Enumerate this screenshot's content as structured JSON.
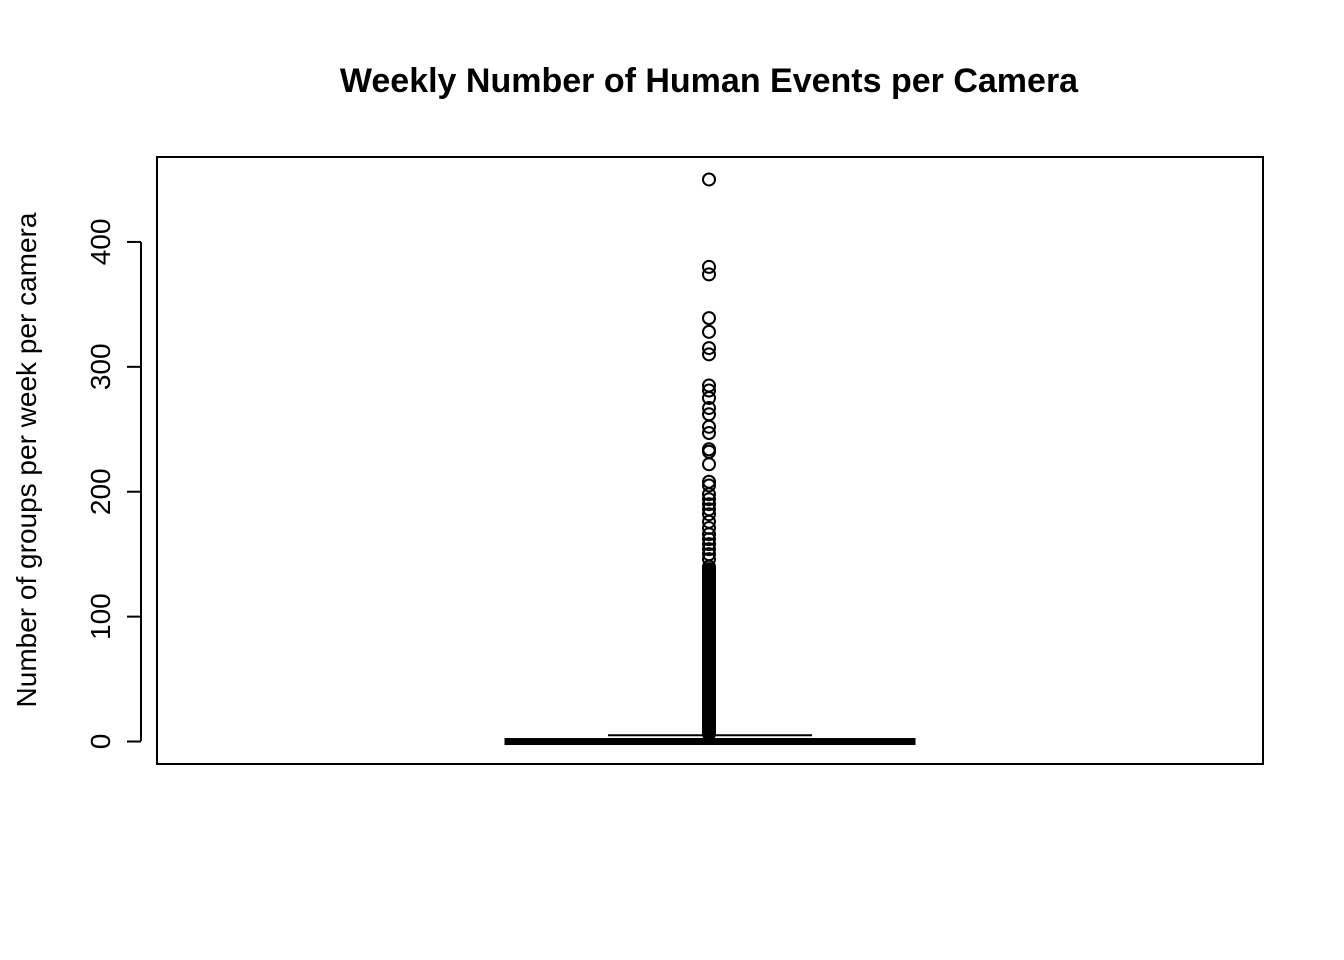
{
  "chart_data": {
    "type": "boxplot",
    "title": "Weekly Number of Human Events per Camera",
    "xlabel": "",
    "ylabel": "Number of groups per week per camera",
    "ylim": [
      -18,
      468
    ],
    "yticks": [
      0,
      100,
      200,
      300,
      400
    ],
    "grid": false,
    "legend": "none",
    "box": {
      "min": 0,
      "q1": 0,
      "median": 0,
      "q3": 0,
      "whisker_high": 5
    },
    "outliers": [
      450,
      380,
      374,
      339,
      328,
      315,
      310,
      285,
      281,
      275,
      267,
      262,
      252,
      247,
      234,
      232,
      222,
      208,
      205,
      198,
      194,
      190,
      186,
      182,
      176,
      171,
      166,
      162,
      158,
      154,
      150,
      146,
      140,
      136,
      132,
      128,
      124,
      120,
      116,
      112,
      108,
      104,
      100,
      96,
      92,
      88,
      84,
      80,
      76,
      72,
      68,
      64,
      60,
      56,
      52,
      48,
      44,
      40,
      36,
      32,
      28,
      24,
      20,
      16,
      12,
      8
    ]
  }
}
